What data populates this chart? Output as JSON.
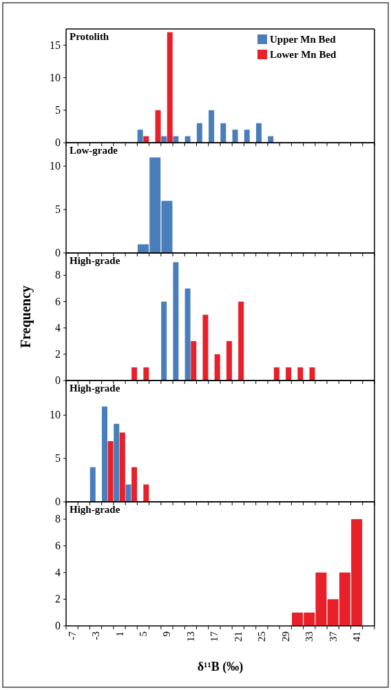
{
  "chart_data": [
    {
      "type": "histogram",
      "title": "Protolith",
      "bins": [
        -8,
        -6,
        -4,
        -2,
        0,
        2,
        4,
        6,
        8,
        10,
        12,
        14,
        16,
        18,
        20,
        22,
        24,
        26,
        28,
        30,
        32,
        34,
        36,
        38,
        40,
        42,
        44
      ],
      "series": [
        {
          "name": "Upper Mn Bed",
          "color": "#4a7ebb",
          "values": [
            0,
            0,
            0,
            0,
            0,
            0,
            2,
            0,
            1,
            1,
            1,
            3,
            5,
            3,
            2,
            2,
            3,
            1,
            0,
            0,
            0,
            0,
            0,
            0,
            0,
            0
          ]
        },
        {
          "name": "Lower Mn Bed",
          "color": "#e8202a",
          "values": [
            0,
            0,
            0,
            0,
            0,
            0,
            1,
            5,
            17,
            0,
            0,
            0,
            0,
            0,
            0,
            0,
            0,
            0,
            0,
            0,
            0,
            0,
            0,
            0,
            0,
            0
          ]
        }
      ],
      "xlim": [
        -8,
        44
      ],
      "xticks": [
        {
          "value": -8,
          "label": null
        },
        {
          "value": -6,
          "label": null
        },
        {
          "value": -4,
          "label": null
        },
        {
          "value": -2,
          "label": null
        },
        {
          "value": 0,
          "label": null
        },
        {
          "value": 2,
          "label": null
        },
        {
          "value": 4,
          "label": null
        },
        {
          "value": 6,
          "label": null
        },
        {
          "value": 8,
          "label": null
        },
        {
          "value": 10,
          "label": null
        },
        {
          "value": 12,
          "label": null
        },
        {
          "value": 14,
          "label": null
        },
        {
          "value": 16,
          "label": null
        },
        {
          "value": 18,
          "label": null
        },
        {
          "value": 20,
          "label": null
        },
        {
          "value": 22,
          "label": null
        },
        {
          "value": 24,
          "label": null
        },
        {
          "value": 26,
          "label": null
        },
        {
          "value": 28,
          "label": null
        },
        {
          "value": 30,
          "label": null
        },
        {
          "value": 32,
          "label": null
        },
        {
          "value": 34,
          "label": null
        },
        {
          "value": 36,
          "label": null
        },
        {
          "value": 38,
          "label": null
        },
        {
          "value": 40,
          "label": null
        },
        {
          "value": 42,
          "label": null
        },
        {
          "value": 44,
          "label": null
        }
      ],
      "ylim": [
        0,
        17.5
      ],
      "yticks": [
        0,
        5,
        10,
        15
      ],
      "tick_labels": "y",
      "legend": "top right"
    },
    {
      "type": "histogram",
      "title": "Low-grade",
      "bins": [
        -8,
        -6,
        -4,
        -2,
        0,
        2,
        4,
        6,
        8,
        10,
        12,
        14,
        16,
        18,
        20,
        22,
        24,
        26,
        28,
        30,
        32,
        34,
        36,
        38,
        40,
        42,
        44
      ],
      "series": [
        {
          "color": "#4a7ebb",
          "values": [
            0,
            0,
            0,
            0,
            0,
            0,
            1,
            11,
            6,
            0,
            0,
            0,
            0,
            0,
            0,
            0,
            0,
            0,
            0,
            0,
            0,
            0,
            0,
            0,
            0,
            0
          ]
        }
      ],
      "xlim": [
        -8,
        44
      ],
      "xticks": [
        {
          "value": -8,
          "label": null
        },
        {
          "value": -6,
          "label": null
        },
        {
          "value": -4,
          "label": null
        },
        {
          "value": -2,
          "label": null
        },
        {
          "value": 0,
          "label": null
        },
        {
          "value": 2,
          "label": null
        },
        {
          "value": 4,
          "label": null
        },
        {
          "value": 6,
          "label": null
        },
        {
          "value": 8,
          "label": null
        },
        {
          "value": 10,
          "label": null
        },
        {
          "value": 12,
          "label": null
        },
        {
          "value": 14,
          "label": null
        },
        {
          "value": 16,
          "label": null
        },
        {
          "value": 18,
          "label": null
        },
        {
          "value": 20,
          "label": null
        },
        {
          "value": 22,
          "label": null
        },
        {
          "value": 24,
          "label": null
        },
        {
          "value": 26,
          "label": null
        },
        {
          "value": 28,
          "label": null
        },
        {
          "value": 30,
          "label": null
        },
        {
          "value": 32,
          "label": null
        },
        {
          "value": 34,
          "label": null
        },
        {
          "value": 36,
          "label": null
        },
        {
          "value": 38,
          "label": null
        },
        {
          "value": 40,
          "label": null
        },
        {
          "value": 42,
          "label": null
        },
        {
          "value": 44,
          "label": null
        }
      ],
      "ylim": [
        0,
        12.7
      ],
      "yticks": [
        0,
        5,
        10
      ],
      "tick_labels": "y"
    },
    {
      "type": "histogram",
      "title": "High-grade",
      "ylabel": "Frequency",
      "bins": [
        -8,
        -6,
        -4,
        -2,
        0,
        2,
        4,
        6,
        8,
        10,
        12,
        14,
        16,
        18,
        20,
        22,
        24,
        26,
        28,
        30,
        32,
        34,
        36,
        38,
        40,
        42,
        44
      ],
      "series": [
        {
          "color": "#4a7ebb",
          "values": [
            0,
            0,
            0,
            0,
            0,
            0,
            0,
            0,
            6,
            9,
            7,
            0,
            0,
            0,
            0,
            0,
            0,
            0,
            0,
            0,
            0,
            0,
            0,
            0,
            0,
            0
          ]
        },
        {
          "color": "#e8202a",
          "values": [
            0,
            0,
            0,
            0,
            0,
            1,
            1,
            0,
            0,
            0,
            3,
            5,
            2,
            3,
            6,
            0,
            0,
            1,
            1,
            1,
            1,
            0,
            0,
            0,
            0,
            0
          ]
        }
      ],
      "xlim": [
        -8,
        44
      ],
      "xticks": [
        {
          "value": -8,
          "label": null
        },
        {
          "value": -6,
          "label": null
        },
        {
          "value": -4,
          "label": null
        },
        {
          "value": -2,
          "label": null
        },
        {
          "value": 0,
          "label": null
        },
        {
          "value": 2,
          "label": null
        },
        {
          "value": 4,
          "label": null
        },
        {
          "value": 6,
          "label": null
        },
        {
          "value": 8,
          "label": null
        },
        {
          "value": 10,
          "label": null
        },
        {
          "value": 12,
          "label": null
        },
        {
          "value": 14,
          "label": null
        },
        {
          "value": 16,
          "label": null
        },
        {
          "value": 18,
          "label": null
        },
        {
          "value": 20,
          "label": null
        },
        {
          "value": 22,
          "label": null
        },
        {
          "value": 24,
          "label": null
        },
        {
          "value": 26,
          "label": null
        },
        {
          "value": 28,
          "label": null
        },
        {
          "value": 30,
          "label": null
        },
        {
          "value": 32,
          "label": null
        },
        {
          "value": 34,
          "label": null
        },
        {
          "value": 36,
          "label": null
        },
        {
          "value": 38,
          "label": null
        },
        {
          "value": 40,
          "label": null
        },
        {
          "value": 42,
          "label": null
        },
        {
          "value": 44,
          "label": null
        }
      ],
      "ylim": [
        0,
        9.7
      ],
      "yticks": [
        0,
        2,
        4,
        6,
        8
      ],
      "tick_labels": "y"
    },
    {
      "type": "histogram",
      "title": "High-grade",
      "bins": [
        -8,
        -6,
        -4,
        -2,
        0,
        2,
        4,
        6,
        8,
        10,
        12,
        14,
        16,
        18,
        20,
        22,
        24,
        26,
        28,
        30,
        32,
        34,
        36,
        38,
        40,
        42,
        44
      ],
      "series": [
        {
          "color": "#4a7ebb",
          "values": [
            0,
            0,
            4,
            11,
            9,
            2,
            0,
            0,
            0,
            0,
            0,
            0,
            0,
            0,
            0,
            0,
            0,
            0,
            0,
            0,
            0,
            0,
            0,
            0,
            0,
            0
          ]
        },
        {
          "color": "#e8202a",
          "values": [
            0,
            0,
            0,
            7,
            8,
            4,
            2,
            0,
            0,
            0,
            0,
            0,
            0,
            0,
            0,
            0,
            0,
            0,
            0,
            0,
            0,
            0,
            0,
            0,
            0,
            0
          ]
        }
      ],
      "xlim": [
        -8,
        44
      ],
      "xticks": [
        {
          "value": -8,
          "label": null
        },
        {
          "value": -6,
          "label": null
        },
        {
          "value": -4,
          "label": null
        },
        {
          "value": -2,
          "label": null
        },
        {
          "value": 0,
          "label": null
        },
        {
          "value": 2,
          "label": null
        },
        {
          "value": 4,
          "label": null
        },
        {
          "value": 6,
          "label": null
        },
        {
          "value": 8,
          "label": null
        },
        {
          "value": 10,
          "label": null
        },
        {
          "value": 12,
          "label": null
        },
        {
          "value": 14,
          "label": null
        },
        {
          "value": 16,
          "label": null
        },
        {
          "value": 18,
          "label": null
        },
        {
          "value": 20,
          "label": null
        },
        {
          "value": 22,
          "label": null
        },
        {
          "value": 24,
          "label": null
        },
        {
          "value": 26,
          "label": null
        },
        {
          "value": 28,
          "label": null
        },
        {
          "value": 30,
          "label": null
        },
        {
          "value": 32,
          "label": null
        },
        {
          "value": 34,
          "label": null
        },
        {
          "value": 36,
          "label": null
        },
        {
          "value": 38,
          "label": null
        },
        {
          "value": 40,
          "label": null
        },
        {
          "value": 42,
          "label": null
        },
        {
          "value": 44,
          "label": null
        }
      ],
      "ylim": [
        0,
        14
      ],
      "yticks": [
        0,
        5,
        10
      ],
      "tick_labels": "y"
    },
    {
      "type": "histogram",
      "title": "High-grade",
      "xlabel": "δ¹¹B (‰)",
      "bins": [
        -8,
        -6,
        -4,
        -2,
        0,
        2,
        4,
        6,
        8,
        10,
        12,
        14,
        16,
        18,
        20,
        22,
        24,
        26,
        28,
        30,
        32,
        34,
        36,
        38,
        40,
        42,
        44
      ],
      "series": [
        {
          "color": "#e8202a",
          "values": [
            0,
            0,
            0,
            0,
            0,
            0,
            0,
            0,
            0,
            0,
            0,
            0,
            0,
            0,
            0,
            0,
            0,
            0,
            0,
            1,
            1,
            4,
            2,
            4,
            8,
            0
          ]
        }
      ],
      "xlim": [
        -8,
        44
      ],
      "xticks": [
        {
          "value": -8,
          "label": null
        },
        {
          "value": -7,
          "label": "-7"
        },
        {
          "value": -6,
          "label": null
        },
        {
          "value": -4,
          "label": null
        },
        {
          "value": -3,
          "label": "-3"
        },
        {
          "value": -2,
          "label": null
        },
        {
          "value": 0,
          "label": null
        },
        {
          "value": 1,
          "label": "1"
        },
        {
          "value": 2,
          "label": null
        },
        {
          "value": 4,
          "label": null
        },
        {
          "value": 5,
          "label": "5"
        },
        {
          "value": 6,
          "label": null
        },
        {
          "value": 8,
          "label": null
        },
        {
          "value": 9,
          "label": "9"
        },
        {
          "value": 10,
          "label": null
        },
        {
          "value": 12,
          "label": null
        },
        {
          "value": 13,
          "label": "13"
        },
        {
          "value": 14,
          "label": null
        },
        {
          "value": 16,
          "label": null
        },
        {
          "value": 17,
          "label": "17"
        },
        {
          "value": 18,
          "label": null
        },
        {
          "value": 20,
          "label": null
        },
        {
          "value": 21,
          "label": "21"
        },
        {
          "value": 22,
          "label": null
        },
        {
          "value": 24,
          "label": null
        },
        {
          "value": 25,
          "label": "25"
        },
        {
          "value": 26,
          "label": null
        },
        {
          "value": 28,
          "label": null
        },
        {
          "value": 29,
          "label": "29"
        },
        {
          "value": 30,
          "label": null
        },
        {
          "value": 32,
          "label": null
        },
        {
          "value": 33,
          "label": "33"
        },
        {
          "value": 34,
          "label": null
        },
        {
          "value": 36,
          "label": null
        },
        {
          "value": 37,
          "label": "37"
        },
        {
          "value": 38,
          "label": null
        },
        {
          "value": 40,
          "label": null
        },
        {
          "value": 41,
          "label": "41"
        },
        {
          "value": 42,
          "label": null
        },
        {
          "value": 44,
          "label": null
        }
      ],
      "ylim": [
        0,
        9.3
      ],
      "yticks": [
        0,
        2,
        4,
        6,
        8
      ]
    }
  ]
}
